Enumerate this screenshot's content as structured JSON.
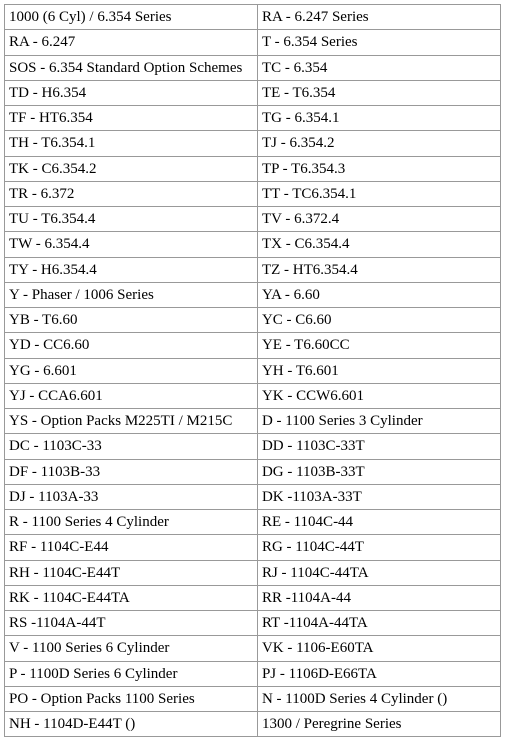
{
  "table": {
    "font_family": "Times New Roman",
    "font_size_pt": 11,
    "text_color": "#000000",
    "border_color": "#999999",
    "background_color": "#ffffff",
    "column_widths_pct": [
      51,
      49
    ],
    "rows": [
      [
        "1000 (6 Cyl) / 6.354 Series",
        "RA - 6.247 Series"
      ],
      [
        "RA - 6.247",
        "T - 6.354 Series"
      ],
      [
        "SOS - 6.354 Standard Option Schemes",
        "TC - 6.354"
      ],
      [
        "TD - H6.354",
        "TE - T6.354"
      ],
      [
        "TF - HT6.354",
        "TG - 6.354.1"
      ],
      [
        "TH - T6.354.1",
        "TJ - 6.354.2"
      ],
      [
        "TK - C6.354.2",
        "TP - T6.354.3"
      ],
      [
        "TR - 6.372",
        "TT - TC6.354.1"
      ],
      [
        "TU - T6.354.4",
        "TV - 6.372.4"
      ],
      [
        "TW - 6.354.4",
        "TX - C6.354.4"
      ],
      [
        "TY - H6.354.4",
        "TZ - HT6.354.4"
      ],
      [
        "Y - Phaser / 1006 Series",
        "YA - 6.60"
      ],
      [
        "YB - T6.60",
        "YC - C6.60"
      ],
      [
        "YD - CC6.60",
        "YE - T6.60CC"
      ],
      [
        "YG - 6.601",
        "YH - T6.601"
      ],
      [
        "YJ - CCA6.601",
        "YK - CCW6.601"
      ],
      [
        "YS - Option Packs M225TI / M215C",
        "D - 1100 Series 3 Cylinder"
      ],
      [
        "DC - 1103C-33",
        "DD - 1103C-33T"
      ],
      [
        "DF - 1103B-33",
        "DG - 1103B-33T"
      ],
      [
        "DJ - 1103A-33",
        "DK -1103A-33T"
      ],
      [
        "R - 1100 Series 4 Cylinder",
        "RE - 1104C-44"
      ],
      [
        "RF - 1104C-E44",
        "RG - 1104C-44T"
      ],
      [
        "RH - 1104C-E44T",
        "RJ - 1104C-44TA"
      ],
      [
        "RK - 1104C-E44TA",
        "RR -1104A-44"
      ],
      [
        "RS -1104A-44T",
        "RT -1104A-44TA"
      ],
      [
        "V - 1100 Series 6 Cylinder",
        "VK - 1106-E60TA"
      ],
      [
        "P - 1100D Series 6 Cylinder",
        "PJ - 1106D-E66TA"
      ],
      [
        "PO - Option Packs 1100 Series",
        "N - 1100D Series 4 Cylinder ()"
      ],
      [
        "NH - 1104D-E44T ()",
        "1300 / Peregrine Series"
      ]
    ]
  }
}
